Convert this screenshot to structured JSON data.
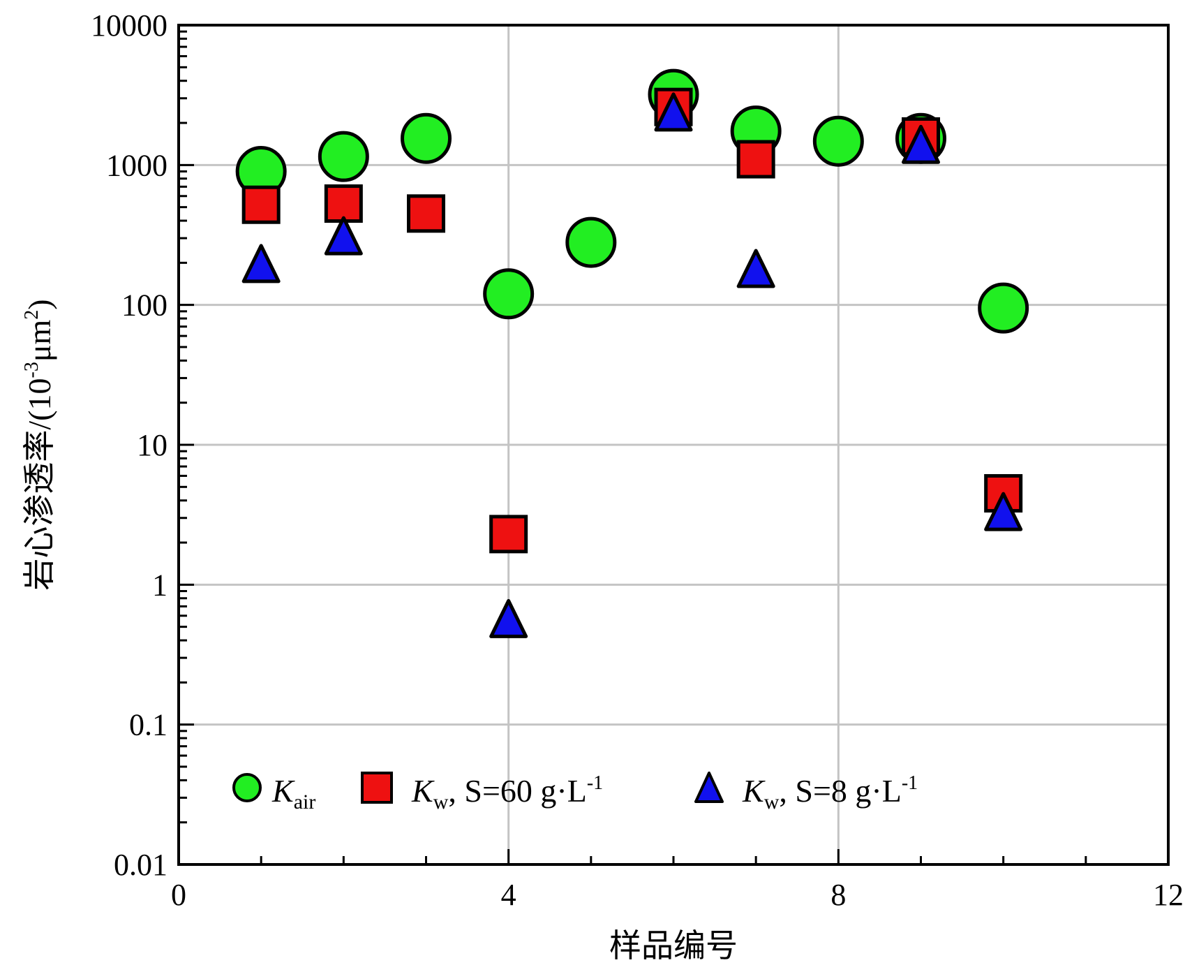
{
  "chart_data": {
    "type": "scatter",
    "title": "",
    "xlabel": "样品编号",
    "ylabel": "岩心渗透率/(10⁻³μm²)",
    "ylabel_parts": {
      "prefix": "岩心渗透率/(10",
      "sup1": "-3",
      "mid": "μm",
      "sup2": "2",
      "suffix": ")"
    },
    "xlim": [
      0,
      12
    ],
    "ylim": [
      0.01,
      10000
    ],
    "y_scale": "log",
    "grid": true,
    "legend_position": "bottom",
    "x_ticks": [
      "0",
      "4",
      "8",
      "12"
    ],
    "x_tick_values": [
      0,
      4,
      8,
      12
    ],
    "y_ticks": [
      "0.01",
      "0.1",
      "1",
      "10",
      "100",
      "1000",
      "10000"
    ],
    "y_tick_values": [
      0.01,
      0.1,
      1,
      10,
      100,
      1000,
      10000
    ],
    "series": [
      {
        "name": "Kair",
        "legend": {
          "main": "K",
          "sub": "air",
          "rest": ""
        },
        "marker": "circle",
        "color": "#22ee22",
        "x": [
          1,
          2,
          3,
          4,
          5,
          6,
          7,
          8,
          9,
          10
        ],
        "y": [
          900,
          1150,
          1550,
          120,
          280,
          3200,
          1750,
          1480,
          1550,
          95
        ]
      },
      {
        "name": "Kw, S=60 g·L-1",
        "legend": {
          "main": "K",
          "sub": "w",
          "rest": ", S=60 g·L",
          "sup": "-1"
        },
        "marker": "square",
        "color": "#ee1111",
        "x": [
          1,
          2,
          3,
          4,
          6,
          7,
          9,
          10
        ],
        "y": [
          520,
          530,
          450,
          2.3,
          2600,
          1100,
          1600,
          4.5
        ]
      },
      {
        "name": "Kw, S=8 g·L-1",
        "legend": {
          "main": "K",
          "sub": "w",
          "rest": ", S=8 g·L",
          "sup": "-1"
        },
        "marker": "triangle",
        "color": "#1111ee",
        "x": [
          1,
          2,
          4,
          6,
          7,
          9,
          10
        ],
        "y": [
          190,
          300,
          0.55,
          2300,
          175,
          1350,
          3.2
        ]
      }
    ]
  }
}
